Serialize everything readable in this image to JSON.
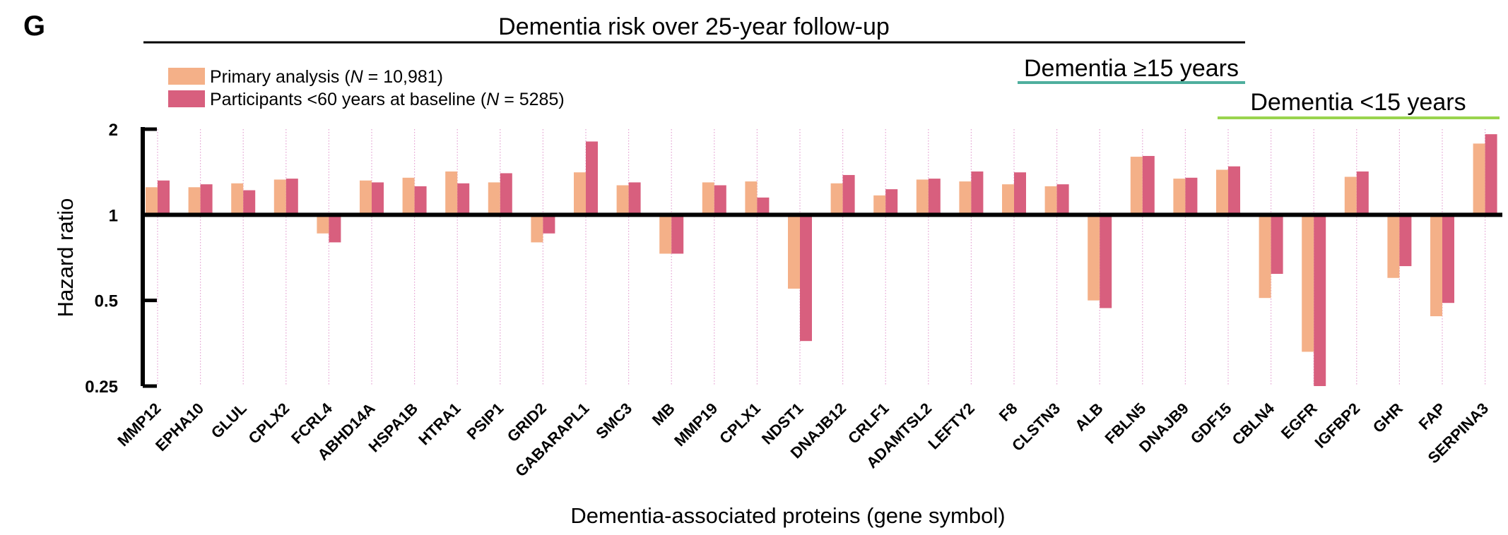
{
  "panel_label": "G",
  "colors": {
    "primary": "#F4B088",
    "under60": "#D85F7E",
    "all_years_line": "#000000",
    "ge15_line": "#4FAF9E",
    "lt15_line": "#99D44E",
    "gridline": "#E3A0D0"
  },
  "groups": {
    "all": "Dementia risk over 25-year follow-up",
    "ge15": "Dementia ≥15 years",
    "lt15": "Dementia <15 years"
  },
  "legend": {
    "primary": {
      "label": "Primary analysis (",
      "n_symbol": "N",
      "n_value": " = 10,981)"
    },
    "under60": {
      "label": "Participants <60 years at baseline (",
      "n_symbol": "N",
      "n_value": " = 5285)"
    }
  },
  "chart_data": {
    "type": "bar",
    "ylabel": "Hazard ratio",
    "xlabel": "Dementia-associated proteins (gene symbol)",
    "y_scale": "log2",
    "ylim": [
      0.25,
      2
    ],
    "yticks": [
      "0.25",
      "0.5",
      "1",
      "2"
    ],
    "baseline": 1,
    "legend_position": "top-left",
    "categories": [
      "MMP12",
      "EPHA10",
      "GLUL",
      "CPLX2",
      "FCRL4",
      "ABHD14A",
      "HSPA1B",
      "HTRA1",
      "PSIP1",
      "GRID2",
      "GABARAPL1",
      "SMC3",
      "MB",
      "MMP19",
      "CPLX1",
      "NDST1",
      "DNAJB12",
      "CRLF1",
      "ADAMTSL2",
      "LEFTY2",
      "F8",
      "CLSTN3",
      "ALB",
      "FBLN5",
      "DNAJB9",
      "GDF15",
      "CBLN4",
      "EGFR",
      "IGFBP2",
      "GHR",
      "FAP",
      "SERPINA3"
    ],
    "series": [
      {
        "name": "Primary analysis (N = 10,981)",
        "values": [
          1.25,
          1.25,
          1.29,
          1.33,
          0.86,
          1.32,
          1.35,
          1.42,
          1.3,
          0.8,
          1.41,
          1.27,
          0.73,
          1.3,
          1.31,
          0.55,
          1.29,
          1.17,
          1.33,
          1.31,
          1.28,
          1.26,
          0.5,
          1.6,
          1.34,
          1.44,
          0.51,
          0.33,
          1.36,
          0.6,
          0.44,
          1.78
        ]
      },
      {
        "name": "Participants <60 years at baseline (N = 5285)",
        "values": [
          1.32,
          1.28,
          1.22,
          1.34,
          0.8,
          1.3,
          1.26,
          1.29,
          1.4,
          0.86,
          1.81,
          1.3,
          0.73,
          1.27,
          1.15,
          0.36,
          1.38,
          1.23,
          1.34,
          1.42,
          1.41,
          1.28,
          0.47,
          1.61,
          1.35,
          1.48,
          0.62,
          0.25,
          1.42,
          0.66,
          0.49,
          1.92
        ]
      }
    ],
    "group_spans": {
      "all": [
        "MMP12",
        "GDF15"
      ],
      "ge15": [
        "ALB",
        "GDF15"
      ],
      "lt15": [
        "CBLN4",
        "SERPINA3"
      ]
    }
  }
}
